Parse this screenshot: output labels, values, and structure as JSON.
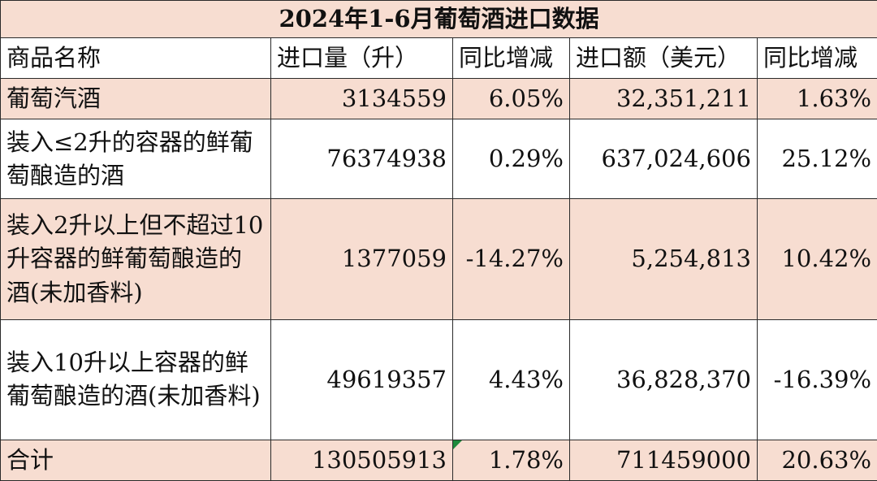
{
  "title": "2024年1-6月葡萄酒进口数据",
  "headers": [
    "商品名称",
    "进口量（升）",
    "同比增减",
    "进口额（美元）",
    "同比增减"
  ],
  "rows": [
    {
      "name": "葡萄汽酒",
      "volume": "3134559",
      "volume_yoy": "6.05%",
      "amount": "32,351,211",
      "amount_yoy": "1.63%"
    },
    {
      "name": "装入≤2升的容器的鲜葡萄酿造的酒",
      "volume": "76374938",
      "volume_yoy": "0.29%",
      "amount": "637,024,606",
      "amount_yoy": "25.12%"
    },
    {
      "name": "装入2升以上但不超过10升容器的鲜葡萄酿造的酒(未加香料)",
      "volume": "1377059",
      "volume_yoy": "-14.27%",
      "amount": "5,254,813",
      "amount_yoy": "10.42%"
    },
    {
      "name": "装入10升以上容器的鲜葡萄酿造的酒(未加香料)",
      "volume": "49619357",
      "volume_yoy": "4.43%",
      "amount": "36,828,370",
      "amount_yoy": "-16.39%"
    }
  ],
  "total": {
    "name": "合计",
    "volume": "130505913",
    "volume_yoy": "1.78%",
    "amount": "711459000",
    "amount_yoy": "20.63%"
  },
  "colors": {
    "row_highlight": "#f7ddd1",
    "border": "#2a2a2a",
    "error_flag": "#1e8a3c"
  }
}
